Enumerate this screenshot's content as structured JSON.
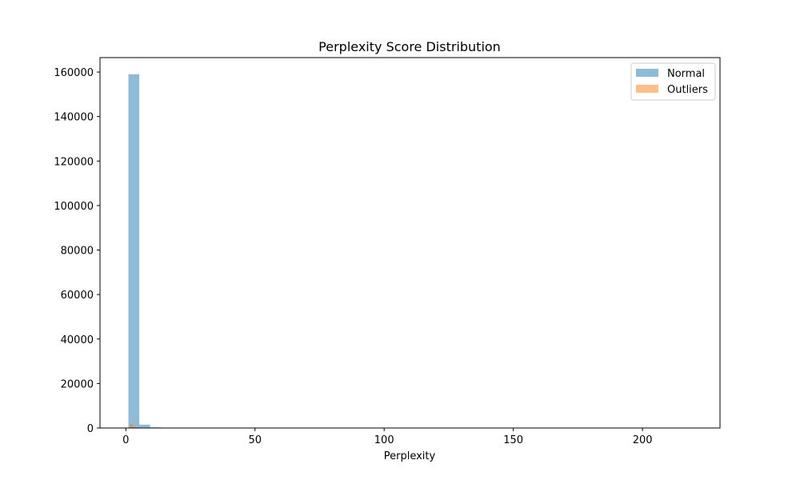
{
  "chart_data": {
    "type": "bar",
    "title": "Perplexity Score Distribution",
    "xlabel": "Perplexity",
    "ylabel": "",
    "xlim": [
      -10,
      230
    ],
    "ylim": [
      0,
      166500
    ],
    "xticks": [
      0,
      50,
      100,
      150,
      200
    ],
    "yticks": [
      0,
      20000,
      40000,
      60000,
      80000,
      100000,
      120000,
      140000,
      160000
    ],
    "legend_position": "top-right",
    "series": [
      {
        "name": "Normal",
        "color": "#1f77b4",
        "opacity": 0.5,
        "bins": [
          {
            "x0": 1.0,
            "x1": 5.2,
            "value": 159000
          },
          {
            "x0": 5.2,
            "x1": 9.4,
            "value": 1500
          },
          {
            "x0": 9.4,
            "x1": 13.6,
            "value": 300
          }
        ]
      },
      {
        "name": "Outliers",
        "color": "#ff7f0e",
        "opacity": 0.5,
        "bins": [
          {
            "x0": 1.5,
            "x1": 2.7,
            "value": 1800
          },
          {
            "x0": 2.7,
            "x1": 3.9,
            "value": 600
          },
          {
            "x0": 3.9,
            "x1": 5.1,
            "value": 200
          }
        ]
      }
    ]
  }
}
